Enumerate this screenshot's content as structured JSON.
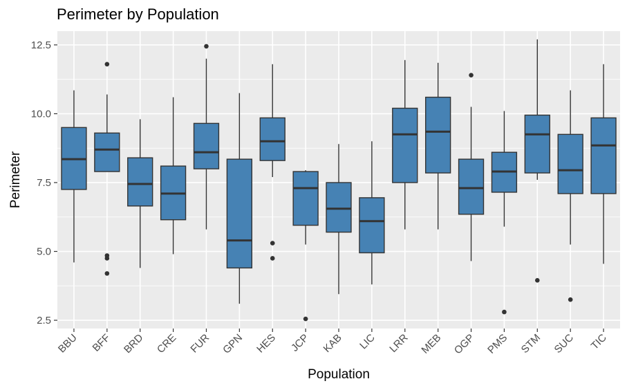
{
  "chart_data": {
    "type": "box",
    "title": "Perimeter by Population",
    "xlabel": "Population",
    "ylabel": "Perimeter",
    "ylim": [
      2.2,
      13.0
    ],
    "yticks": [
      2.5,
      5.0,
      7.5,
      10.0,
      12.5
    ],
    "ytick_labels": [
      "2.5",
      "5.0",
      "7.5",
      "10.0",
      "12.5"
    ],
    "grid": true,
    "fill_color": "#4682B4",
    "background_color": "#EBEBEB",
    "categories": [
      "BBU",
      "BFF",
      "BRD",
      "CRE",
      "FUR",
      "GPN",
      "HES",
      "JCP",
      "KAB",
      "LIC",
      "LRR",
      "MEB",
      "OGP",
      "PMS",
      "STM",
      "SUC",
      "TIC"
    ],
    "boxes": [
      {
        "min": 4.6,
        "q1": 7.25,
        "median": 8.35,
        "q3": 9.5,
        "max": 10.85,
        "outliers": []
      },
      {
        "min": 7.9,
        "q1": 7.9,
        "median": 8.7,
        "q3": 9.3,
        "max": 10.7,
        "outliers": [
          11.8,
          4.85,
          4.75,
          4.2
        ]
      },
      {
        "min": 4.4,
        "q1": 6.65,
        "median": 7.45,
        "q3": 8.4,
        "max": 9.8,
        "outliers": []
      },
      {
        "min": 4.9,
        "q1": 6.15,
        "median": 7.1,
        "q3": 8.1,
        "max": 10.6,
        "outliers": []
      },
      {
        "min": 5.8,
        "q1": 8.0,
        "median": 8.6,
        "q3": 9.65,
        "max": 12.0,
        "outliers": [
          12.45
        ]
      },
      {
        "min": 3.1,
        "q1": 4.4,
        "median": 5.4,
        "q3": 8.35,
        "max": 10.75,
        "outliers": []
      },
      {
        "min": 7.7,
        "q1": 8.3,
        "median": 9.0,
        "q3": 9.85,
        "max": 11.8,
        "outliers": [
          5.3,
          4.75
        ]
      },
      {
        "min": 5.25,
        "q1": 5.95,
        "median": 7.3,
        "q3": 7.9,
        "max": 7.95,
        "outliers": [
          2.55
        ]
      },
      {
        "min": 3.45,
        "q1": 5.7,
        "median": 6.55,
        "q3": 7.5,
        "max": 8.9,
        "outliers": []
      },
      {
        "min": 3.8,
        "q1": 4.95,
        "median": 6.1,
        "q3": 6.95,
        "max": 9.0,
        "outliers": []
      },
      {
        "min": 5.8,
        "q1": 7.5,
        "median": 9.25,
        "q3": 10.2,
        "max": 11.95,
        "outliers": []
      },
      {
        "min": 5.8,
        "q1": 7.85,
        "median": 9.35,
        "q3": 10.6,
        "max": 11.85,
        "outliers": []
      },
      {
        "min": 4.65,
        "q1": 6.35,
        "median": 7.3,
        "q3": 8.35,
        "max": 10.25,
        "outliers": [
          11.4
        ]
      },
      {
        "min": 5.9,
        "q1": 7.15,
        "median": 7.9,
        "q3": 8.6,
        "max": 10.1,
        "outliers": [
          2.8
        ]
      },
      {
        "min": 7.6,
        "q1": 7.85,
        "median": 9.25,
        "q3": 9.95,
        "max": 12.7,
        "outliers": [
          3.95
        ]
      },
      {
        "min": 5.25,
        "q1": 7.1,
        "median": 7.95,
        "q3": 9.25,
        "max": 10.85,
        "outliers": [
          3.25
        ]
      },
      {
        "min": 4.55,
        "q1": 7.1,
        "median": 8.85,
        "q3": 9.85,
        "max": 11.8,
        "outliers": []
      }
    ]
  }
}
